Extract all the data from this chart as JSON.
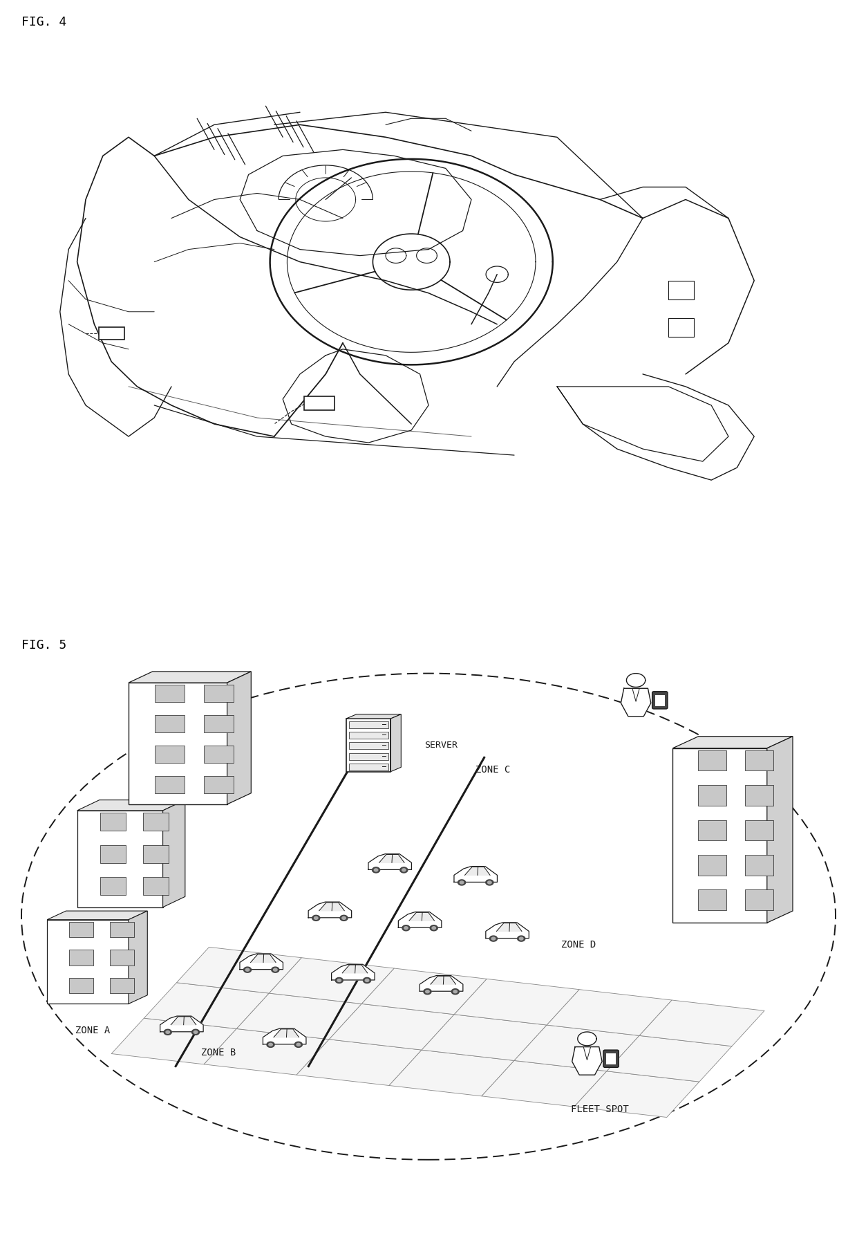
{
  "fig_label_4": "FIG. 4",
  "fig_label_5": "FIG. 5",
  "bg_color": "#ffffff",
  "line_color": "#1a1a1a",
  "label_fontsize": 13,
  "zone_fontsize": 10,
  "server_label": "SERVER",
  "zone_a": "ZONE A",
  "zone_b": "ZONE B",
  "zone_c": "ZONE C",
  "zone_d": "ZONE D",
  "fleet_spot": "FLEET SPOT"
}
